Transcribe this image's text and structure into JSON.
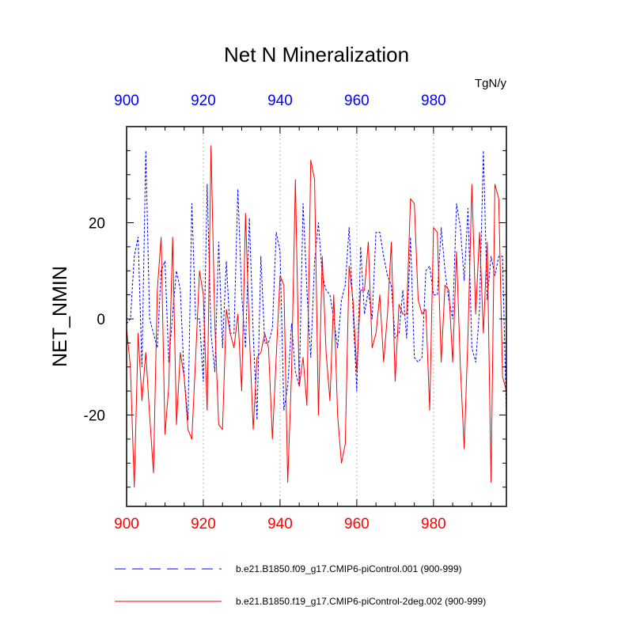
{
  "chart_data": {
    "type": "line",
    "title": "Net N Mineralization",
    "ylabel": "NET_NMIN",
    "units": "TgN/y",
    "xlim": [
      900,
      999
    ],
    "ylim": [
      -39,
      40
    ],
    "xticks": [
      900,
      920,
      940,
      960,
      980
    ],
    "xtick_labels": [
      "900",
      "920",
      "940",
      "960",
      "980"
    ],
    "yticks": [
      -20,
      0,
      20
    ],
    "ytick_labels": [
      "-20",
      "0",
      "20"
    ],
    "top_axis_color": "#0000ff",
    "bottom_axis_color": "#ff0000",
    "grid": "vertical dotted at major x ticks",
    "legend_position": "bottom",
    "series": [
      {
        "name": "b.e21.B1850.f09_g17.CMIP6-piControl.001 (900-999)",
        "color": "#0000ff",
        "style": "dashed",
        "x_start": 900,
        "values": [
          -1,
          0,
          13,
          17,
          -10,
          35,
          0,
          -3,
          -6,
          10,
          12,
          -9,
          1,
          10,
          6,
          -12,
          -21,
          24,
          0,
          0,
          -13,
          28,
          -3,
          -11,
          16,
          -6,
          12,
          -3,
          -3,
          27,
          5,
          -6,
          21,
          -3,
          -21,
          13,
          -5,
          -5,
          -2,
          18,
          14,
          -19,
          -14,
          -1,
          -11,
          -14,
          24,
          6,
          -8,
          12,
          20,
          9,
          6,
          5,
          0,
          -6,
          4,
          7,
          19,
          2,
          -15,
          15,
          1,
          6,
          0,
          18,
          18,
          13,
          9,
          7,
          -4,
          -3,
          6,
          -4,
          17,
          -8,
          -9,
          -8,
          10,
          11,
          5,
          5,
          19,
          10,
          4,
          0,
          24,
          19,
          8,
          23,
          -6,
          -9,
          2,
          35,
          4,
          13,
          9,
          13,
          13,
          -20
        ]
      },
      {
        "name": "b.e21.B1850.f19_g17.CMIP6-piControl-2deg.002 (900-999)",
        "color": "#ff0000",
        "style": "solid",
        "x_start": 900,
        "values": [
          -2,
          -10,
          -35,
          -3,
          -17,
          -7,
          -20,
          -32,
          6,
          17,
          -24,
          -14,
          17,
          -22,
          -7,
          -12,
          -23,
          -25,
          -8,
          10,
          5,
          -19,
          36,
          -1,
          -22,
          -23,
          2,
          -3,
          -6,
          1,
          -15,
          22,
          -3,
          -23,
          -8,
          -7,
          -3,
          -6,
          -25,
          -8,
          9,
          7,
          -34,
          -11,
          29,
          -14,
          -8,
          -18,
          33,
          29,
          -20,
          13,
          -7,
          -17,
          5,
          -20,
          -30,
          -26,
          11,
          4,
          -11,
          6,
          6,
          16,
          -6,
          -3,
          5,
          -9,
          1,
          16,
          -13,
          3,
          1,
          1,
          25,
          24,
          4,
          1,
          2,
          -19,
          19,
          18,
          -9,
          7,
          6,
          -9,
          14,
          -10,
          -27,
          -3,
          28,
          1,
          18,
          -3,
          16,
          -34,
          28,
          25,
          -12,
          -15
        ]
      }
    ]
  }
}
